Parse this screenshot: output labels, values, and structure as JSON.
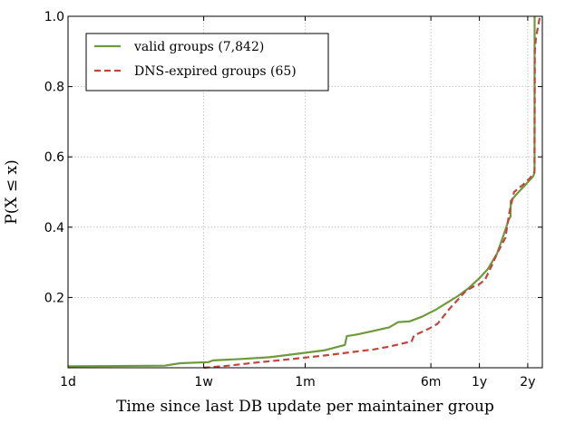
{
  "chart_data": {
    "type": "line",
    "title": "",
    "xlabel": "Time since last DB update per maintainer group",
    "ylabel": "P(X ≤ x)",
    "x_scale": "log",
    "x_unit": "days",
    "xlim": [
      1,
      900
    ],
    "ylim": [
      0,
      1.0
    ],
    "grid": true,
    "legend_position": "top-left",
    "x_ticks": [
      {
        "value": 1,
        "label": "1d"
      },
      {
        "value": 7,
        "label": "1w"
      },
      {
        "value": 30,
        "label": "1m"
      },
      {
        "value": 182,
        "label": "6m"
      },
      {
        "value": 365,
        "label": "1y"
      },
      {
        "value": 730,
        "label": "2y"
      }
    ],
    "y_ticks": [
      {
        "value": 0.2,
        "label": "0.2"
      },
      {
        "value": 0.4,
        "label": "0.4"
      },
      {
        "value": 0.6,
        "label": "0.6"
      },
      {
        "value": 0.8,
        "label": "0.8"
      },
      {
        "value": 1.0,
        "label": "1.0"
      }
    ],
    "series": [
      {
        "name": "valid groups (7,842)",
        "color": "#6e9a3b",
        "style": "solid",
        "points": [
          [
            1,
            0.004
          ],
          [
            4,
            0.006
          ],
          [
            5,
            0.013
          ],
          [
            7.5,
            0.016
          ],
          [
            8,
            0.021
          ],
          [
            12,
            0.025
          ],
          [
            18,
            0.03
          ],
          [
            27,
            0.04
          ],
          [
            40,
            0.05
          ],
          [
            53,
            0.065
          ],
          [
            54.5,
            0.09
          ],
          [
            64,
            0.095
          ],
          [
            80,
            0.105
          ],
          [
            100,
            0.115
          ],
          [
            114,
            0.13
          ],
          [
            134,
            0.132
          ],
          [
            160,
            0.145
          ],
          [
            195,
            0.165
          ],
          [
            220,
            0.18
          ],
          [
            270,
            0.205
          ],
          [
            310,
            0.225
          ],
          [
            365,
            0.255
          ],
          [
            410,
            0.28
          ],
          [
            470,
            0.325
          ],
          [
            510,
            0.37
          ],
          [
            555,
            0.42
          ],
          [
            570,
            0.43
          ],
          [
            572,
            0.475
          ],
          [
            640,
            0.5
          ],
          [
            705,
            0.52
          ],
          [
            790,
            0.545
          ],
          [
            805,
            0.555
          ],
          [
            806,
            1.0
          ]
        ]
      },
      {
        "name": "DNS-expired groups (65)",
        "color": "#c0463e",
        "style": "dashed",
        "points": [
          [
            7,
            0.0
          ],
          [
            10,
            0.006
          ],
          [
            15,
            0.015
          ],
          [
            25,
            0.025
          ],
          [
            40,
            0.035
          ],
          [
            60,
            0.045
          ],
          [
            80,
            0.052
          ],
          [
            100,
            0.06
          ],
          [
            138,
            0.075
          ],
          [
            143,
            0.092
          ],
          [
            175,
            0.11
          ],
          [
            200,
            0.125
          ],
          [
            240,
            0.17
          ],
          [
            270,
            0.195
          ],
          [
            300,
            0.218
          ],
          [
            338,
            0.232
          ],
          [
            358,
            0.235
          ],
          [
            395,
            0.25
          ],
          [
            435,
            0.29
          ],
          [
            470,
            0.325
          ],
          [
            530,
            0.37
          ],
          [
            560,
            0.44
          ],
          [
            600,
            0.5
          ],
          [
            680,
            0.52
          ],
          [
            755,
            0.54
          ],
          [
            805,
            0.558
          ],
          [
            808,
            0.9
          ],
          [
            822,
            0.94
          ],
          [
            870,
            1.0
          ]
        ]
      }
    ]
  }
}
